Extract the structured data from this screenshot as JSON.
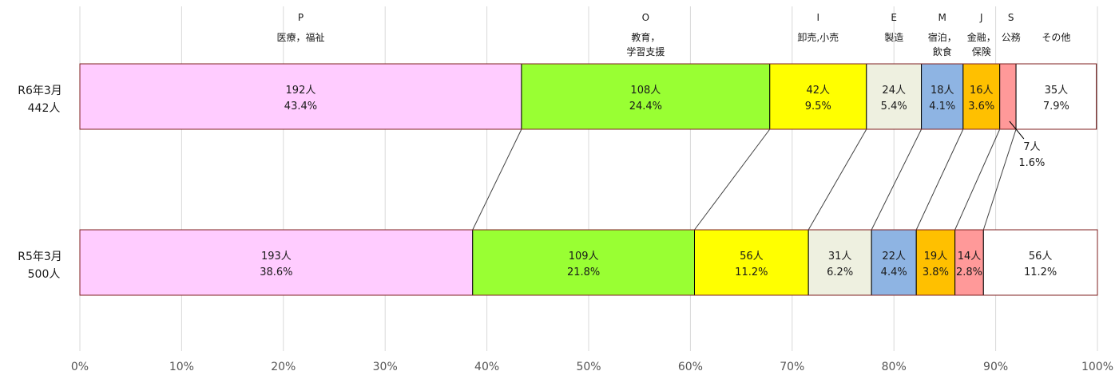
{
  "chart_data": {
    "type": "bar",
    "orientation": "horizontal",
    "stacked": true,
    "normalized": true,
    "xlim": [
      0,
      100
    ],
    "x_ticks": [
      "0%",
      "10%",
      "20%",
      "30%",
      "40%",
      "50%",
      "60%",
      "70%",
      "80%",
      "90%",
      "100%"
    ],
    "grid": "vertical",
    "connector_lines": true,
    "rows": [
      {
        "label_line1": "R6年3月",
        "label_line2": "442人"
      },
      {
        "label_line1": "R5年3月",
        "label_line2": "500人"
      }
    ],
    "categories": [
      {
        "code": "P",
        "name_lines": [
          "医療，福祉"
        ],
        "color": "#ffccff"
      },
      {
        "code": "O",
        "name_lines": [
          "教育，",
          "学習支援"
        ],
        "color": "#99ff33"
      },
      {
        "code": "I",
        "name_lines": [
          "卸売,小売"
        ],
        "color": "#ffff00"
      },
      {
        "code": "E",
        "name_lines": [
          "製造"
        ],
        "color": "#eef0e0"
      },
      {
        "code": "M",
        "name_lines": [
          "宿泊，",
          "飲食"
        ],
        "color": "#8eb4e3"
      },
      {
        "code": "J",
        "name_lines": [
          "金融，",
          "保険"
        ],
        "color": "#ffc000"
      },
      {
        "code": "S",
        "name_lines": [
          "公務"
        ],
        "color": "#ff9999"
      },
      {
        "code": "",
        "name_lines": [
          "その他"
        ],
        "color": "#ffffff"
      }
    ],
    "series": [
      {
        "row": "R6年3月",
        "percents": [
          43.4,
          24.4,
          9.5,
          5.4,
          4.1,
          3.6,
          1.6,
          7.9
        ],
        "counts": [
          "192人",
          "108人",
          "42人",
          "24人",
          "18人",
          "16人",
          "7人",
          "35人"
        ],
        "percent_labels": [
          "43.4%",
          "24.4%",
          "9.5%",
          "5.4%",
          "4.1%",
          "3.6%",
          "1.6%",
          "7.9%"
        ]
      },
      {
        "row": "R5年3月",
        "percents": [
          38.6,
          21.8,
          11.2,
          6.2,
          4.4,
          3.8,
          2.8,
          11.2
        ],
        "counts": [
          "193人",
          "109人",
          "56人",
          "31人",
          "22人",
          "19人",
          "14人",
          "56人"
        ],
        "percent_labels": [
          "38.6%",
          "21.8%",
          "11.2%",
          "6.2%",
          "4.4%",
          "3.8%",
          "2.8%",
          "11.2%"
        ]
      }
    ]
  }
}
